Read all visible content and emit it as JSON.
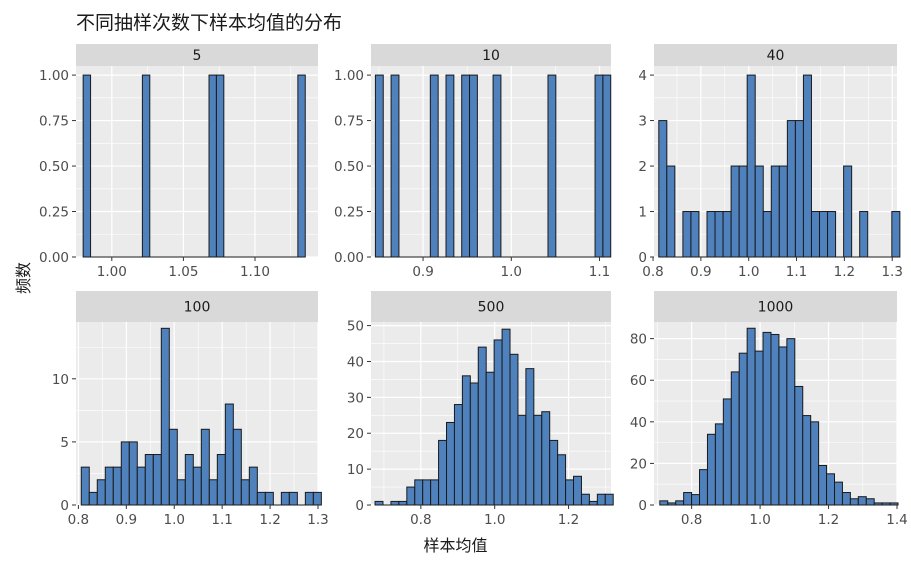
{
  "title": "不同抽样次数下样本均值的分布",
  "xlabel": "样本均值",
  "ylabel": "频数",
  "colors": {
    "bar_fill": "#4f81bd",
    "bar_stroke": "#1a1a1a",
    "panel_bg": "#ebebeb",
    "strip_bg": "#d9d9d9",
    "grid": "#ffffff",
    "tick_text": "#4d4d4d"
  },
  "chart_data": [
    {
      "type": "bar",
      "label": "5",
      "xlim": [
        0.975,
        1.144
      ],
      "ylim": [
        0,
        1.05
      ],
      "xticks": [
        1.0,
        1.05,
        1.1
      ],
      "xtick_labels": [
        "1.00",
        "1.05",
        "1.10"
      ],
      "yticks": [
        0,
        0.25,
        0.5,
        0.75,
        1.0
      ],
      "ytick_labels": [
        "0.00",
        "0.25",
        "0.50",
        "0.75",
        "1.00"
      ],
      "bin_start": 0.98,
      "bin_width": 0.00517,
      "counts": [
        1,
        0,
        0,
        0,
        0,
        0,
        0,
        0,
        1,
        0,
        0,
        0,
        0,
        0,
        0,
        0,
        0,
        1,
        1,
        0,
        0,
        0,
        0,
        0,
        0,
        0,
        0,
        0,
        0,
        1
      ]
    },
    {
      "type": "bar",
      "label": "10",
      "xlim": [
        0.841,
        1.113
      ],
      "ylim": [
        0,
        1.05
      ],
      "xticks": [
        0.9,
        1.0,
        1.1
      ],
      "xtick_labels": [
        "0.9",
        "1.0",
        "1.1"
      ],
      "yticks": [
        0,
        0.25,
        0.5,
        0.75,
        1.0
      ],
      "ytick_labels": [
        "0.00",
        "0.25",
        "0.50",
        "0.75",
        "1.00"
      ],
      "bin_start": 0.846,
      "bin_width": 0.00889,
      "counts": [
        1,
        0,
        1,
        0,
        0,
        0,
        0,
        1,
        0,
        1,
        0,
        1,
        1,
        0,
        0,
        1,
        0,
        0,
        0,
        0,
        0,
        0,
        1,
        0,
        0,
        0,
        0,
        0,
        1,
        1
      ]
    },
    {
      "type": "bar",
      "label": "40",
      "xlim": [
        0.802,
        1.31
      ],
      "ylim": [
        0,
        4.2
      ],
      "xticks": [
        0.8,
        0.9,
        1.0,
        1.1,
        1.2,
        1.3
      ],
      "xtick_labels": [
        "0.8",
        "0.9",
        "1.0",
        "1.1",
        "1.2",
        "1.3"
      ],
      "yticks": [
        0,
        1,
        2,
        3,
        4
      ],
      "ytick_labels": [
        "0",
        "1",
        "2",
        "3",
        "4"
      ],
      "bin_start": 0.812,
      "bin_width": 0.0168,
      "counts": [
        3,
        2,
        0,
        1,
        1,
        0,
        1,
        1,
        1,
        2,
        2,
        4,
        2,
        1,
        2,
        2,
        3,
        3,
        4,
        1,
        1,
        1,
        0,
        2,
        0,
        1,
        0,
        0,
        0,
        1
      ]
    },
    {
      "type": "bar",
      "label": "100",
      "xlim": [
        0.795,
        1.3
      ],
      "ylim": [
        0,
        14.5
      ],
      "xticks": [
        0.8,
        0.9,
        1.0,
        1.1,
        1.2,
        1.3
      ],
      "xtick_labels": [
        "0.8",
        "0.9",
        "1.0",
        "1.1",
        "1.2",
        "1.3"
      ],
      "yticks": [
        0,
        5,
        10
      ],
      "ytick_labels": [
        "0",
        "5",
        "10"
      ],
      "bin_start": 0.806,
      "bin_width": 0.0167,
      "counts": [
        3,
        1,
        2,
        3,
        3,
        5,
        5,
        3,
        4,
        4,
        14,
        6,
        2,
        4,
        3,
        6,
        2,
        4,
        8,
        6,
        2,
        3,
        1,
        1,
        0,
        1,
        1,
        0,
        1,
        1
      ]
    },
    {
      "type": "bar",
      "label": "500",
      "xlim": [
        0.665,
        1.315
      ],
      "ylim": [
        0,
        51
      ],
      "xticks": [
        0.8,
        1.0,
        1.2
      ],
      "xtick_labels": [
        "0.8",
        "1.0",
        "1.2"
      ],
      "yticks": [
        0,
        10,
        20,
        30,
        40,
        50
      ],
      "ytick_labels": [
        "0",
        "10",
        "20",
        "30",
        "40",
        "50"
      ],
      "bin_start": 0.676,
      "bin_width": 0.0215,
      "counts": [
        1,
        0,
        1,
        1,
        5,
        7,
        7,
        7,
        18,
        23,
        28,
        36,
        34,
        44,
        37,
        46,
        49,
        42,
        25,
        38,
        25,
        26,
        18,
        14,
        7,
        8,
        3,
        1,
        3,
        3
      ]
    },
    {
      "type": "bar",
      "label": "1000",
      "xlim": [
        0.69,
        1.4
      ],
      "ylim": [
        0,
        88
      ],
      "xticks": [
        0.8,
        1.0,
        1.2,
        1.4
      ],
      "xtick_labels": [
        "0.8",
        "1.0",
        "1.2",
        "1.4"
      ],
      "yticks": [
        0,
        20,
        40,
        60,
        80
      ],
      "ytick_labels": [
        "0",
        "20",
        "40",
        "60",
        "80"
      ],
      "bin_start": 0.707,
      "bin_width": 0.0232,
      "counts": [
        2,
        1,
        2,
        6,
        5,
        17,
        34,
        39,
        51,
        64,
        73,
        85,
        74,
        83,
        82,
        76,
        80,
        57,
        43,
        40,
        19,
        15,
        11,
        6,
        3,
        4,
        3,
        1,
        1,
        1
      ]
    }
  ]
}
